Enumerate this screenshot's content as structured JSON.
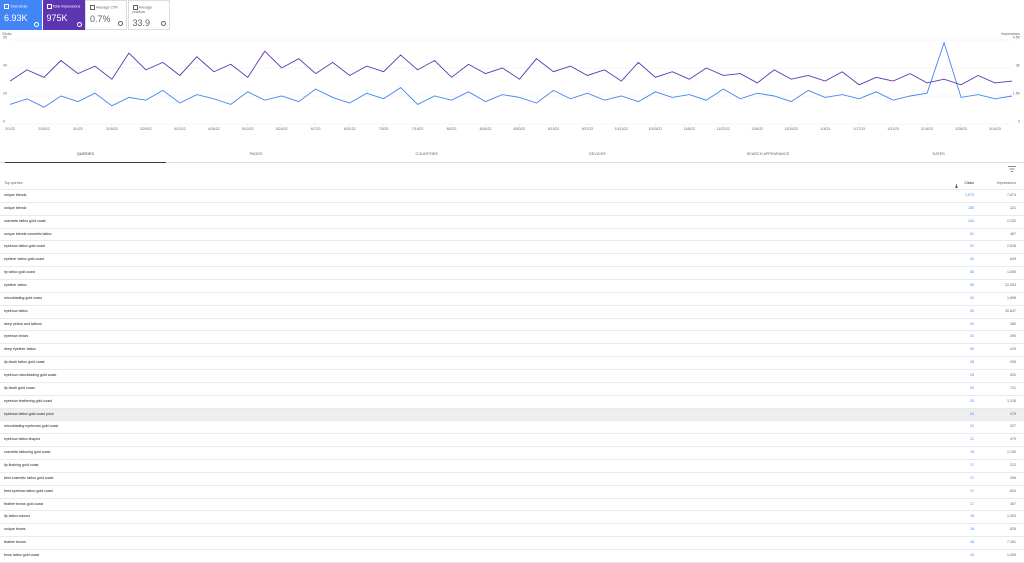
{
  "metrics": [
    {
      "label": "Total clicks",
      "value": "6.93K"
    },
    {
      "label": "Total impressions",
      "value": "975K"
    },
    {
      "label": "Average CTR",
      "value": "0.7%"
    },
    {
      "label": "Average position",
      "value": "33.9"
    }
  ],
  "chart_data": {
    "type": "line",
    "y_label": "Clicks",
    "y2_label": "Impressions",
    "categories": [
      "2/1/22",
      null,
      "2/15/22",
      null,
      "3/1/22",
      null,
      "3/15/22",
      null,
      "3/29/22",
      null,
      "4/12/22",
      null,
      "4/26/22",
      null,
      "5/10/22",
      null,
      "5/24/22",
      null,
      "6/7/22",
      null,
      "6/21/22",
      null,
      "7/5/22",
      null,
      "7/19/22",
      null,
      "8/2/22",
      null,
      "8/16/22",
      null,
      "8/30/22",
      null,
      "9/13/22",
      null,
      "9/27/22",
      null,
      "10/11/22",
      null,
      "10/25/22",
      null,
      "11/8/22",
      null,
      "11/22/22",
      null,
      "12/6/22",
      null,
      "12/20/22",
      null,
      "1/3/23",
      null,
      "1/17/23",
      null,
      "1/31/23",
      null,
      "2/14/23",
      null,
      "2/28/23",
      null,
      "3/14/23",
      null
    ],
    "series": [
      {
        "name": "Clicks",
        "color": "#4285f4",
        "values": [
          14,
          18,
          12,
          20,
          16,
          22,
          13,
          19,
          17,
          24,
          15,
          21,
          18,
          14,
          23,
          17,
          20,
          16,
          25,
          19,
          15,
          22,
          18,
          26,
          14,
          20,
          17,
          23,
          16,
          21,
          19,
          15,
          24,
          18,
          22,
          17,
          20,
          16,
          23,
          19,
          21,
          17,
          25,
          18,
          22,
          20,
          16,
          24,
          19,
          21,
          18,
          23,
          17,
          20,
          22,
          58,
          19,
          21,
          18,
          20
        ]
      },
      {
        "name": "Impressions",
        "color": "#5e35b1",
        "axis": "y2",
        "values": [
          2300,
          2900,
          2500,
          3400,
          2700,
          3100,
          2400,
          3800,
          2900,
          3300,
          2600,
          3600,
          2800,
          3200,
          2500,
          3900,
          3000,
          3500,
          2700,
          3300,
          2600,
          3100,
          2800,
          3700,
          2900,
          3400,
          2500,
          3200,
          2700,
          3000,
          2400,
          3500,
          2800,
          3100,
          2600,
          2900,
          2300,
          3300,
          2500,
          2800,
          2400,
          3000,
          2600,
          2700,
          2200,
          2900,
          2400,
          2600,
          2300,
          2800,
          2100,
          2500,
          2300,
          2700,
          2200,
          2400,
          2100,
          2600,
          2200,
          2300
        ]
      }
    ],
    "ylim": [
      0,
      60
    ],
    "yticks": [
      0,
      20,
      40,
      60
    ],
    "y2lim": [
      0,
      4500
    ],
    "y2ticks": [
      0,
      {
        "value": 1500,
        "label": "1.5K"
      },
      {
        "value": 3000,
        "label": "3K"
      },
      {
        "value": 4500,
        "label": "4.5K"
      }
    ],
    "grid": true
  },
  "tabs": [
    "QUERIES",
    "PAGES",
    "COUNTRIES",
    "DEVICES",
    "SEARCH APPEARANCE",
    "DATES"
  ],
  "table": {
    "header": [
      "Top queries",
      "Clicks",
      "Impressions"
    ],
    "rows": [
      [
        "unique blends",
        "1,073",
        "7,874"
      ],
      [
        "unique blendz",
        "155",
        "321"
      ],
      [
        "cosmetic tattoo gold coast",
        "104",
        "2,232"
      ],
      [
        "unique blends cosmetic tattoo",
        "51",
        "467"
      ],
      [
        "eyebrow tattoo gold coast",
        "51",
        "2,518"
      ],
      [
        "eyeliner tattoo gold coast",
        "42",
        "649"
      ],
      [
        "lip tattoo gold coast",
        "36",
        "1,655"
      ],
      [
        "eyeliner tattoo",
        "36",
        "22,053"
      ],
      [
        "microblading gold coast",
        "34",
        "1,898"
      ],
      [
        "eyebrow tattoo",
        "33",
        "30,847"
      ],
      [
        "deep yellow and tattoos",
        "31",
        "380"
      ],
      [
        "eyebrow brows",
        "31",
        "390"
      ],
      [
        "deep eyeliner tattoo",
        "30",
        "419"
      ],
      [
        "lip blush tattoo gold coast",
        "28",
        "926"
      ],
      [
        "eyebrow microblading gold coast",
        "28",
        "830"
      ],
      [
        "lip blush gold coast",
        "25",
        "741"
      ],
      [
        "eyebrow feathering gold coast",
        "25",
        "1,318"
      ],
      [
        "eyebrow tattoo gold coast price",
        "24",
        "479"
      ],
      [
        "microblading eyebrows gold coast",
        "23",
        "327"
      ],
      [
        "eyebrow tattoo shapes",
        "21",
        "479"
      ],
      [
        "cosmetic tattooing gold coast",
        "19",
        "1,190"
      ],
      [
        "lip flushing gold coast",
        "17",
        "312"
      ],
      [
        "best cosmetic tattoo gold coast",
        "17",
        "496"
      ],
      [
        "best eyebrow tattoo gold coast",
        "17",
        "824"
      ],
      [
        "feather brows gold coast",
        "17",
        "467"
      ],
      [
        "lip tattoo colours",
        "16",
        "1,003"
      ],
      [
        "unique brows",
        "16",
        "826"
      ],
      [
        "feather brows",
        "16",
        "7,161"
      ],
      [
        "brow tattoo gold coast",
        "15",
        "1,059"
      ]
    ]
  }
}
